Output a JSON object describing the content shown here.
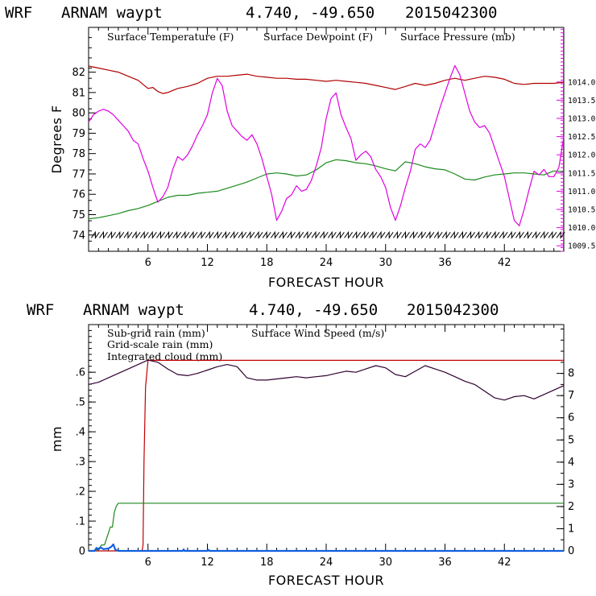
{
  "colors": {
    "temperature": "#b00000",
    "dewpoint": "#1c8a1c",
    "pressure": "#e000e0",
    "subgrid": "#c00000",
    "gridscale": "#1c8a1c",
    "cloud": "#1060e0",
    "wind": "#300030",
    "axes": "#000000"
  },
  "chart_data": [
    {
      "type": "line",
      "header": {
        "model": "WRF",
        "location": "ARNAM waypt",
        "coords": "4.740, -49.650",
        "date": "2015042300"
      },
      "xlabel": "FORECAST HOUR",
      "ylabel": "Degrees F",
      "xlim": [
        0,
        48
      ],
      "ylim": [
        73.2,
        84.2
      ],
      "y2lim": [
        1009.35,
        1015.5
      ],
      "xticks": [
        "6",
        "12",
        "18",
        "24",
        "30",
        "36",
        "42"
      ],
      "yticks": [
        "74",
        "75",
        "76",
        "77",
        "78",
        "79",
        "80",
        "81",
        "82"
      ],
      "y2ticks": [
        "1009.5",
        "1010.0",
        "1010.5",
        "1011.0",
        "1011.5",
        "1012.0",
        "1012.5",
        "1013.0",
        "1013.5",
        "1014.0"
      ],
      "series": [
        {
          "name": "Surface Temperature (F)",
          "color_key": "temperature",
          "axis": "left",
          "x": [
            0,
            1,
            2,
            3,
            4,
            5,
            5.5,
            6,
            6.5,
            7,
            7.5,
            8,
            9,
            10,
            11,
            12,
            13,
            14,
            15,
            16,
            17,
            18,
            19,
            20,
            21,
            22,
            23,
            24,
            25,
            26,
            27,
            28,
            29,
            30,
            31,
            32,
            33,
            34,
            35,
            36,
            37,
            38,
            39,
            40,
            41,
            42,
            43,
            44,
            45,
            46,
            47,
            48
          ],
          "values": [
            82.3,
            82.2,
            82.1,
            82.0,
            81.8,
            81.6,
            81.4,
            81.2,
            81.25,
            81.05,
            80.95,
            81.0,
            81.2,
            81.3,
            81.45,
            81.7,
            81.8,
            81.8,
            81.85,
            81.9,
            81.8,
            81.75,
            81.7,
            81.7,
            81.65,
            81.65,
            81.6,
            81.55,
            81.6,
            81.55,
            81.5,
            81.45,
            81.35,
            81.25,
            81.15,
            81.3,
            81.45,
            81.35,
            81.45,
            81.6,
            81.7,
            81.6,
            81.7,
            81.8,
            81.75,
            81.65,
            81.45,
            81.4,
            81.45,
            81.45,
            81.45,
            81.5
          ]
        },
        {
          "name": "Surface Dewpoint (F)",
          "color_key": "dewpoint",
          "axis": "left",
          "x": [
            0,
            1,
            2,
            3,
            4,
            5,
            6,
            7,
            8,
            9,
            10,
            11,
            12,
            13,
            14,
            15,
            16,
            17,
            18,
            19,
            20,
            21,
            22,
            23,
            24,
            25,
            26,
            27,
            28,
            29,
            30,
            31,
            32,
            33,
            34,
            35,
            36,
            37,
            38,
            39,
            40,
            41,
            42,
            43,
            44,
            45,
            46,
            47,
            48
          ],
          "values": [
            74.8,
            74.85,
            74.95,
            75.05,
            75.2,
            75.3,
            75.45,
            75.65,
            75.85,
            75.95,
            75.95,
            76.05,
            76.1,
            76.15,
            76.3,
            76.45,
            76.6,
            76.8,
            77.0,
            77.05,
            77.0,
            76.9,
            76.95,
            77.2,
            77.55,
            77.7,
            77.65,
            77.55,
            77.5,
            77.4,
            77.25,
            77.15,
            77.6,
            77.5,
            77.35,
            77.25,
            77.2,
            77.0,
            76.75,
            76.7,
            76.85,
            76.95,
            77.0,
            77.05,
            77.05,
            77.0,
            76.95,
            77.15,
            77.1
          ]
        },
        {
          "name": "Surface Pressure (mb)",
          "color_key": "pressure",
          "axis": "right",
          "x": [
            0,
            0.5,
            1,
            1.5,
            2,
            2.5,
            3,
            3.5,
            4,
            4.5,
            5,
            5.5,
            6,
            6.5,
            7,
            7.5,
            8,
            8.5,
            9,
            9.5,
            10,
            10.5,
            11,
            11.5,
            12,
            12.5,
            13,
            13.5,
            14,
            14.5,
            15,
            15.5,
            16,
            16.5,
            17,
            17.5,
            18,
            18.5,
            19,
            19.5,
            20,
            20.5,
            21,
            21.5,
            22,
            22.5,
            23,
            23.5,
            24,
            24.5,
            25,
            25.5,
            26,
            26.5,
            27,
            27.5,
            28,
            28.5,
            29,
            29.5,
            30,
            30.5,
            31,
            31.5,
            32,
            32.5,
            33,
            33.5,
            34,
            34.5,
            35,
            35.5,
            36,
            36.5,
            37,
            37.5,
            38,
            38.5,
            39,
            39.5,
            40,
            40.5,
            41,
            41.5,
            42,
            42.5,
            43,
            43.5,
            44,
            44.5,
            45,
            45.5,
            46,
            46.5,
            47,
            47.5,
            48
          ],
          "values": [
            1012.9,
            1013.1,
            1013.2,
            1013.25,
            1013.2,
            1013.1,
            1012.95,
            1012.8,
            1012.65,
            1012.4,
            1012.3,
            1011.9,
            1011.55,
            1011.1,
            1010.7,
            1010.85,
            1011.1,
            1011.6,
            1011.95,
            1011.85,
            1012.0,
            1012.25,
            1012.55,
            1012.8,
            1013.1,
            1013.7,
            1014.1,
            1013.9,
            1013.2,
            1012.8,
            1012.65,
            1012.5,
            1012.4,
            1012.55,
            1012.3,
            1011.9,
            1011.4,
            1010.9,
            1010.2,
            1010.45,
            1010.8,
            1010.9,
            1011.15,
            1011.0,
            1011.05,
            1011.3,
            1011.7,
            1012.2,
            1013.0,
            1013.55,
            1013.7,
            1013.1,
            1012.75,
            1012.45,
            1011.85,
            1012.0,
            1012.1,
            1011.95,
            1011.6,
            1011.4,
            1011.1,
            1010.55,
            1010.2,
            1010.6,
            1011.1,
            1011.55,
            1012.15,
            1012.3,
            1012.2,
            1012.4,
            1012.85,
            1013.3,
            1013.7,
            1014.1,
            1014.45,
            1014.2,
            1013.7,
            1013.2,
            1012.9,
            1012.75,
            1012.8,
            1012.6,
            1012.2,
            1011.8,
            1011.4,
            1010.8,
            1010.2,
            1010.05,
            1010.5,
            1011.05,
            1011.55,
            1011.45,
            1011.6,
            1011.4,
            1011.4,
            1011.65,
            1012.5
          ]
        }
      ],
      "wind_barbs": {
        "y": 73.98,
        "count": 58
      }
    },
    {
      "type": "line",
      "header": {
        "model": "WRF",
        "location": "ARNAM waypt",
        "coords": "4.740, -49.650",
        "date": "2015042300"
      },
      "xlabel": "FORECAST HOUR",
      "ylabel": "mm",
      "xlim": [
        0,
        48
      ],
      "ylim": [
        0,
        0.76
      ],
      "y2lim": [
        0,
        10.2
      ],
      "xticks": [
        "6",
        "12",
        "18",
        "24",
        "30",
        "36",
        "42"
      ],
      "yticks": [
        "0",
        ".1",
        ".2",
        ".3",
        ".4",
        ".5",
        ".6"
      ],
      "y2ticks": [
        "0",
        "1",
        "2",
        "3",
        "4",
        "5",
        "6",
        "7",
        "8"
      ],
      "series": [
        {
          "name": "Sub-grid rain (mm)",
          "color_key": "subgrid",
          "axis": "left",
          "x": [
            0,
            5.4,
            5.5,
            5.6,
            5.75,
            6.0,
            48
          ],
          "values": [
            0,
            0,
            0.02,
            0.3,
            0.55,
            0.64,
            0.64
          ]
        },
        {
          "name": "Grid-scale rain (mm)",
          "color_key": "gridscale",
          "axis": "left",
          "x": [
            0,
            0.5,
            1.0,
            1.3,
            1.6,
            2.0,
            2.2,
            2.4,
            2.6,
            2.8,
            3.0,
            48
          ],
          "values": [
            0,
            0,
            0.005,
            0.02,
            0.02,
            0.06,
            0.08,
            0.08,
            0.13,
            0.15,
            0.16,
            0.16
          ]
        },
        {
          "name": "Integrated cloud (mm)",
          "color_key": "cloud",
          "axis": "left",
          "x": [
            0,
            0.6,
            0.8,
            1.0,
            1.2,
            1.5,
            2.0,
            2.3,
            2.5,
            2.7,
            3.0,
            4.0,
            9.5,
            9.6,
            9.7,
            12.0,
            12.1,
            12.2,
            48
          ],
          "values": [
            0,
            0,
            0.01,
            0.005,
            0.012,
            0.006,
            0.008,
            0.014,
            0.022,
            0.004,
            0,
            0,
            0,
            0.005,
            0,
            0,
            0.004,
            0,
            0
          ]
        },
        {
          "name": "Surface Wind Speed (m/s)",
          "color_key": "wind",
          "axis": "right",
          "x": [
            0,
            1,
            2,
            3,
            4,
            5,
            6,
            7,
            8,
            9,
            10,
            11,
            12,
            13,
            14,
            15,
            16,
            17,
            18,
            19,
            20,
            21,
            22,
            23,
            24,
            25,
            26,
            27,
            28,
            29,
            30,
            31,
            32,
            33,
            34,
            35,
            36,
            37,
            38,
            39,
            40,
            41,
            42,
            43,
            44,
            45,
            46,
            47,
            48
          ],
          "values": [
            7.5,
            7.6,
            7.8,
            8.0,
            8.2,
            8.4,
            8.6,
            8.5,
            8.2,
            7.95,
            7.9,
            8.0,
            8.15,
            8.3,
            8.4,
            8.3,
            7.8,
            7.7,
            7.7,
            7.75,
            7.8,
            7.85,
            7.8,
            7.85,
            7.9,
            8.0,
            8.1,
            8.05,
            8.2,
            8.35,
            8.25,
            7.95,
            7.85,
            8.1,
            8.35,
            8.2,
            8.05,
            7.85,
            7.65,
            7.5,
            7.2,
            6.9,
            6.8,
            6.95,
            7.0,
            6.85,
            7.05,
            7.25,
            7.45
          ]
        }
      ]
    }
  ]
}
